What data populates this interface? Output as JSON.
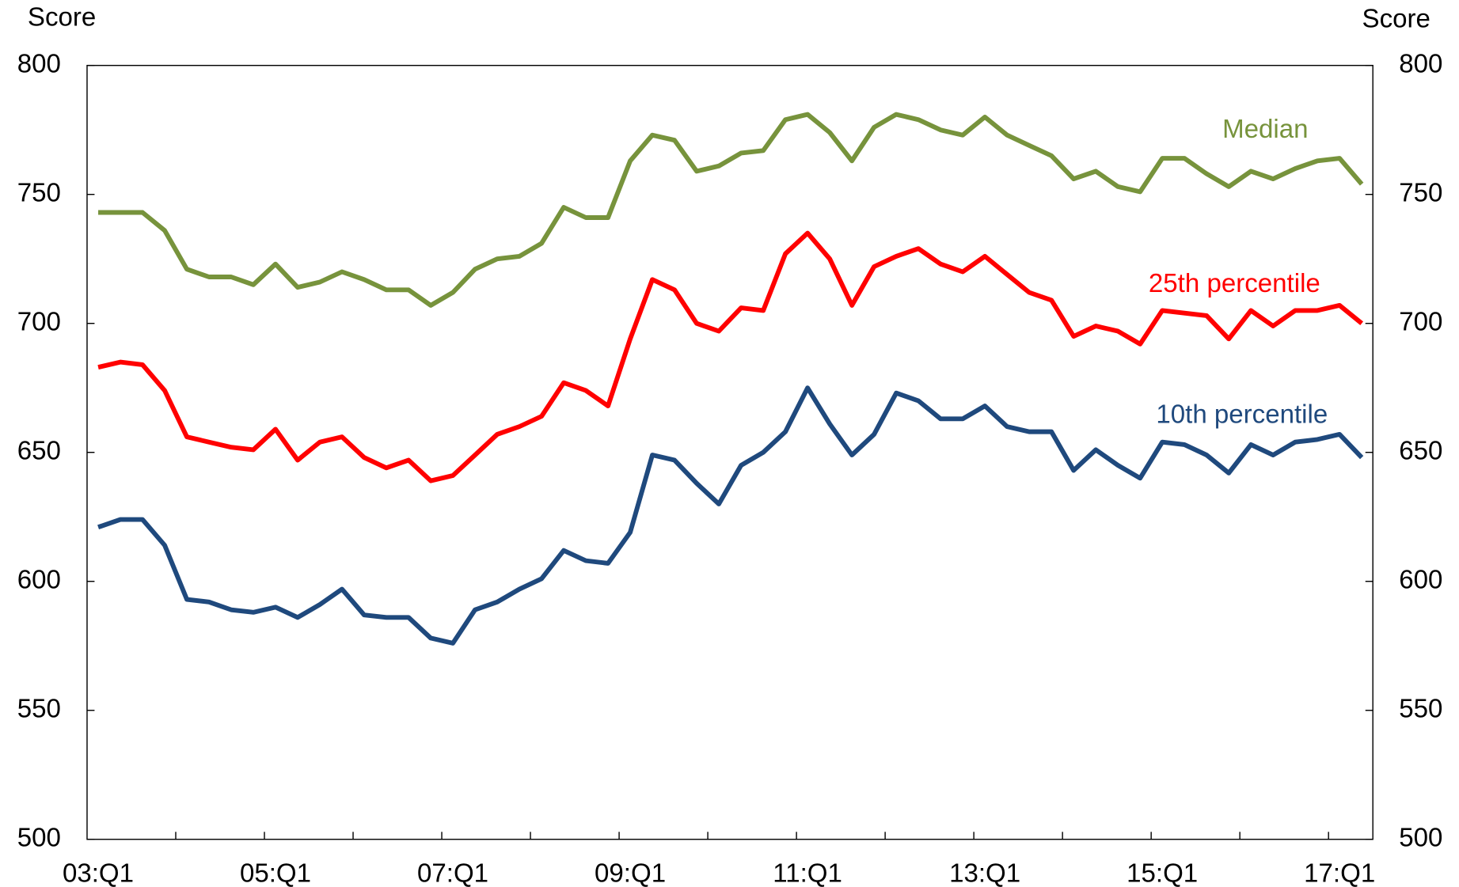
{
  "chart_data": {
    "type": "line",
    "y_label": "Score",
    "y2_label": "Score",
    "categories": [
      "03:Q1",
      null,
      null,
      null,
      null,
      null,
      null,
      null,
      "05:Q1",
      null,
      null,
      null,
      null,
      null,
      null,
      null,
      "07:Q1",
      null,
      null,
      null,
      null,
      null,
      null,
      null,
      "09:Q1",
      null,
      null,
      null,
      null,
      null,
      null,
      null,
      "11:Q1",
      null,
      null,
      null,
      null,
      null,
      null,
      null,
      "13:Q1",
      null,
      null,
      null,
      null,
      null,
      null,
      null,
      "15:Q1",
      null,
      null,
      null,
      null,
      null,
      null,
      null,
      "17:Q1",
      null
    ],
    "series": [
      {
        "name": "Median",
        "color": "#77933c",
        "values": [
          743,
          743,
          743,
          736,
          721,
          718,
          718,
          715,
          723,
          714,
          716,
          720,
          717,
          713,
          713,
          707,
          712,
          721,
          725,
          726,
          731,
          745,
          741,
          741,
          763,
          773,
          771,
          759,
          761,
          766,
          767,
          779,
          781,
          774,
          763,
          776,
          781,
          779,
          775,
          773,
          780,
          773,
          769,
          765,
          756,
          759,
          753,
          751,
          764,
          764,
          758,
          753,
          759,
          756,
          760,
          763,
          764,
          754
        ]
      },
      {
        "name": "25th percentile",
        "color": "#ff0000",
        "values": [
          683,
          685,
          684,
          674,
          656,
          654,
          652,
          651,
          659,
          647,
          654,
          656,
          648,
          644,
          647,
          639,
          641,
          649,
          657,
          660,
          664,
          677,
          674,
          668,
          694,
          717,
          713,
          700,
          697,
          706,
          705,
          727,
          735,
          725,
          707,
          722,
          726,
          729,
          723,
          720,
          726,
          719,
          712,
          709,
          695,
          699,
          697,
          692,
          705,
          704,
          703,
          694,
          705,
          699,
          705,
          705,
          707,
          700
        ]
      },
      {
        "name": "10th percentile",
        "color": "#1f497d",
        "values": [
          621,
          624,
          624,
          614,
          593,
          592,
          589,
          588,
          590,
          586,
          591,
          597,
          587,
          586,
          586,
          578,
          576,
          589,
          592,
          597,
          601,
          612,
          608,
          607,
          619,
          649,
          647,
          638,
          630,
          645,
          650,
          658,
          675,
          661,
          649,
          657,
          673,
          670,
          663,
          663,
          668,
          660,
          658,
          658,
          643,
          651,
          645,
          640,
          654,
          653,
          649,
          642,
          653,
          649,
          654,
          655,
          657,
          648
        ]
      }
    ],
    "ylim": [
      500,
      800
    ],
    "yticks": [
      500,
      550,
      600,
      650,
      700,
      750,
      800
    ],
    "y2lim": [
      500,
      800
    ],
    "y2ticks": [
      500,
      550,
      600,
      650,
      700,
      750,
      800
    ]
  }
}
